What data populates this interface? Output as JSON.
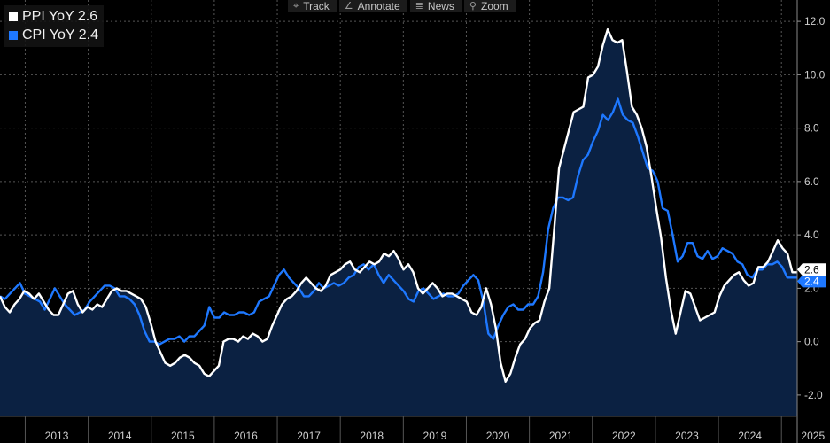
{
  "toolbar": {
    "items": [
      {
        "label": "Track",
        "icon": "crosshair-icon"
      },
      {
        "label": "Annotate",
        "icon": "pencil-icon"
      },
      {
        "label": "News",
        "icon": "news-icon"
      },
      {
        "label": "Zoom",
        "icon": "magnifier-icon"
      }
    ]
  },
  "legend": {
    "items": [
      {
        "label": "PPI YoY 2.6",
        "color": "#ffffff"
      },
      {
        "label": "CPI YoY 2.4",
        "color": "#1e78ff"
      }
    ]
  },
  "colors": {
    "background": "#000000",
    "ppi": "#ffffff",
    "cpi": "#1e78ff",
    "area_fill": "#0b2142",
    "grid": "#555555"
  },
  "chart_data": {
    "type": "line",
    "title": "",
    "xlabel": "",
    "ylabel": "",
    "x_start": 2012.6,
    "x_end": 2025.25,
    "xlim": [
      2012.6,
      2025.25
    ],
    "ylim": [
      -2.8,
      12.8
    ],
    "x_ticks": [
      "2013",
      "2014",
      "2015",
      "2016",
      "2017",
      "2018",
      "2019",
      "2020",
      "2021",
      "2022",
      "2023",
      "2024",
      "2025"
    ],
    "y_ticks": [
      -2.0,
      0.0,
      2.0,
      4.0,
      6.0,
      8.0,
      10.0,
      12.0
    ],
    "y_tick_labels": [
      "-2.0",
      "0.0",
      "2.0",
      "4.0",
      "6.0",
      "8.0",
      "10.0",
      "12.0"
    ],
    "grid": true,
    "legend_position": "top-left",
    "area_series": "PPI YoY",
    "last_value_labels": [
      "2.6",
      "2.4"
    ],
    "series": [
      {
        "name": "PPI YoY",
        "last": 2.6,
        "values": [
          1.7,
          1.3,
          1.1,
          1.4,
          1.6,
          1.9,
          1.8,
          1.6,
          1.8,
          1.5,
          1.2,
          1.0,
          1.0,
          1.4,
          1.8,
          1.9,
          1.4,
          1.1,
          1.3,
          1.2,
          1.4,
          1.3,
          1.6,
          1.9,
          2.0,
          1.9,
          1.9,
          1.8,
          1.7,
          1.6,
          1.3,
          0.7,
          0.0,
          -0.4,
          -0.8,
          -0.9,
          -0.8,
          -0.6,
          -0.5,
          -0.6,
          -0.8,
          -0.9,
          -1.2,
          -1.3,
          -1.1,
          -0.9,
          0.0,
          0.1,
          0.1,
          0.0,
          0.2,
          0.1,
          0.3,
          0.2,
          0.0,
          0.1,
          0.6,
          1.0,
          1.4,
          1.6,
          1.7,
          1.9,
          2.2,
          2.4,
          2.2,
          2.0,
          1.9,
          2.1,
          2.5,
          2.6,
          2.7,
          2.9,
          3.0,
          2.7,
          2.6,
          2.8,
          3.0,
          2.9,
          3.0,
          3.3,
          3.2,
          3.4,
          3.1,
          2.7,
          2.9,
          2.6,
          2.0,
          1.8,
          2.0,
          2.2,
          2.0,
          1.7,
          1.8,
          1.8,
          1.7,
          1.6,
          1.5,
          1.1,
          1.0,
          1.3,
          2.0,
          1.4,
          0.5,
          -0.8,
          -1.5,
          -1.2,
          -0.6,
          -0.1,
          0.1,
          0.5,
          0.7,
          0.8,
          1.5,
          2.0,
          4.2,
          6.5,
          7.2,
          7.9,
          8.6,
          8.7,
          8.8,
          9.9,
          10.0,
          10.3,
          11.1,
          11.7,
          11.3,
          11.2,
          11.3,
          10.1,
          8.8,
          8.5,
          8.0,
          7.3,
          6.2,
          5.0,
          3.9,
          2.4,
          1.2,
          0.3,
          1.1,
          1.9,
          1.8,
          1.3,
          0.8,
          0.9,
          1.0,
          1.1,
          1.7,
          2.1,
          2.3,
          2.5,
          2.6,
          2.3,
          2.1,
          2.2,
          2.8,
          2.8,
          3.0,
          3.4,
          3.8,
          3.5,
          3.3,
          2.6,
          2.6
        ]
      },
      {
        "name": "CPI YoY",
        "last": 2.4,
        "values": [
          1.7,
          1.6,
          1.8,
          2.0,
          2.2,
          1.8,
          1.7,
          1.6,
          1.5,
          1.2,
          1.6,
          2.0,
          1.7,
          1.4,
          1.2,
          1.0,
          1.1,
          1.2,
          1.5,
          1.7,
          1.9,
          2.1,
          2.1,
          2.0,
          1.7,
          1.7,
          1.6,
          1.4,
          1.0,
          0.4,
          0.0,
          0.0,
          -0.1,
          0.0,
          0.1,
          0.1,
          0.2,
          0.0,
          0.2,
          0.2,
          0.4,
          0.6,
          1.3,
          0.9,
          0.9,
          1.1,
          1.0,
          1.0,
          1.1,
          1.1,
          1.0,
          1.1,
          1.5,
          1.6,
          1.7,
          2.1,
          2.5,
          2.7,
          2.4,
          2.2,
          2.0,
          1.7,
          1.7,
          1.9,
          2.2,
          2.0,
          2.1,
          2.2,
          2.1,
          2.2,
          2.4,
          2.5,
          2.8,
          2.9,
          2.7,
          2.9,
          2.5,
          2.2,
          2.5,
          2.3,
          2.1,
          1.9,
          1.6,
          1.5,
          1.9,
          2.0,
          1.8,
          1.6,
          1.7,
          1.8,
          1.7,
          1.7,
          1.8,
          2.1,
          2.3,
          2.5,
          2.3,
          1.5,
          0.3,
          0.1,
          0.6,
          1.0,
          1.3,
          1.4,
          1.2,
          1.2,
          1.4,
          1.4,
          1.7,
          2.6,
          4.2,
          5.0,
          5.4,
          5.4,
          5.3,
          5.4,
          6.2,
          6.8,
          7.0,
          7.5,
          7.9,
          8.5,
          8.3,
          8.6,
          9.1,
          8.5,
          8.3,
          8.2,
          7.7,
          7.1,
          6.5,
          6.4,
          6.0,
          5.0,
          4.9,
          4.0,
          3.0,
          3.2,
          3.7,
          3.7,
          3.2,
          3.1,
          3.4,
          3.1,
          3.2,
          3.5,
          3.4,
          3.3,
          3.0,
          2.9,
          2.5,
          2.4,
          2.7,
          2.7,
          2.9,
          2.9,
          3.0,
          2.8,
          2.4,
          2.4,
          2.4
        ]
      }
    ]
  }
}
